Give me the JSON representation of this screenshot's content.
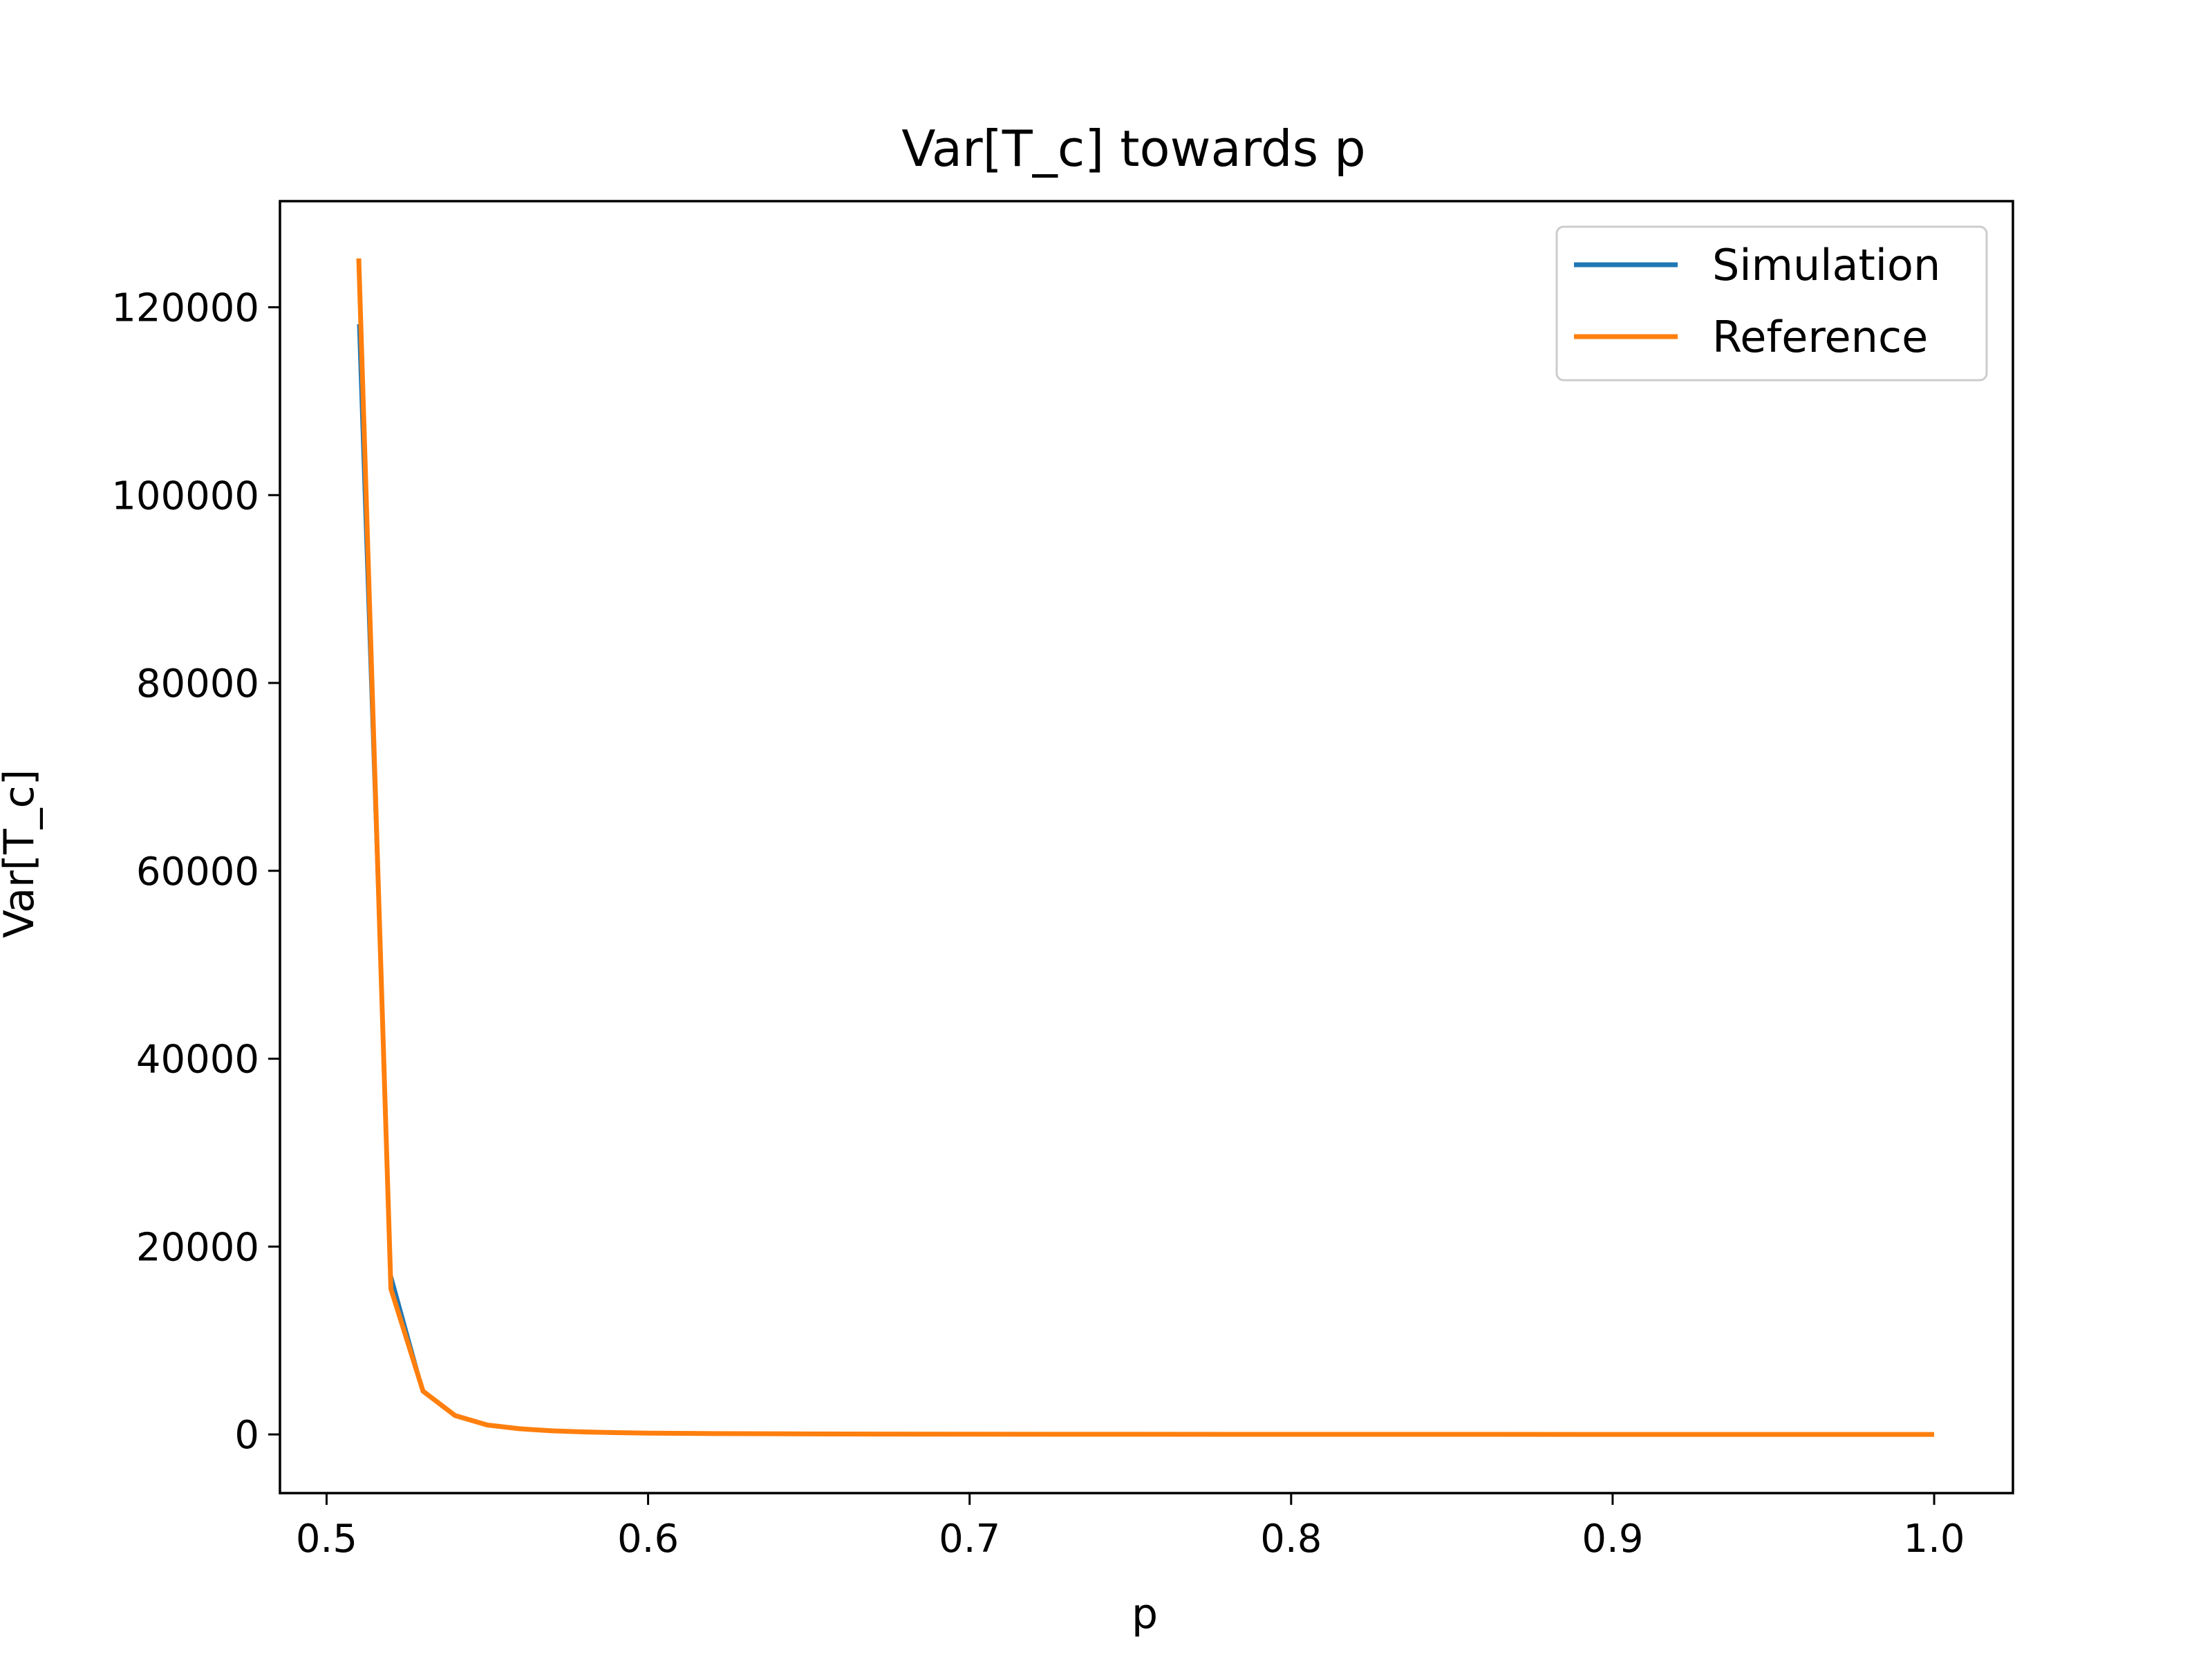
{
  "chart_data": {
    "type": "line",
    "title": "Var[T_c] towards p",
    "xlabel": "p",
    "ylabel": "Var[T_c]",
    "xlim": [
      0.4855,
      1.0245
    ],
    "ylim": [
      -6250,
      131300
    ],
    "xticks": [
      0.5,
      0.6,
      0.7,
      0.8,
      0.9,
      1.0
    ],
    "xtick_labels": [
      "0.5",
      "0.6",
      "0.7",
      "0.8",
      "0.9",
      "1.0"
    ],
    "yticks": [
      0,
      20000,
      40000,
      60000,
      80000,
      100000,
      120000
    ],
    "ytick_labels": [
      "0",
      "20000",
      "40000",
      "60000",
      "80000",
      "100000",
      "120000"
    ],
    "grid": false,
    "legend_position": "top-right",
    "x": [
      0.51,
      0.52,
      0.53,
      0.54,
      0.55,
      0.56,
      0.57,
      0.58,
      0.59,
      0.6,
      0.62,
      0.65,
      0.7,
      0.75,
      0.8,
      0.85,
      0.9,
      0.95,
      1.0
    ],
    "series": [
      {
        "name": "Simulation",
        "color": "#1f77b4",
        "values": [
          118200,
          17000,
          4600,
          2000,
          1000,
          600,
          380,
          260,
          190,
          140,
          90,
          50,
          22,
          12,
          6,
          3,
          1,
          0.3,
          0
        ]
      },
      {
        "name": "Reference",
        "color": "#ff7f0e",
        "values": [
          125200,
          15500,
          4600,
          2000,
          1000,
          600,
          380,
          260,
          190,
          140,
          90,
          50,
          22,
          12,
          6,
          3,
          1,
          0.3,
          0
        ]
      }
    ]
  }
}
